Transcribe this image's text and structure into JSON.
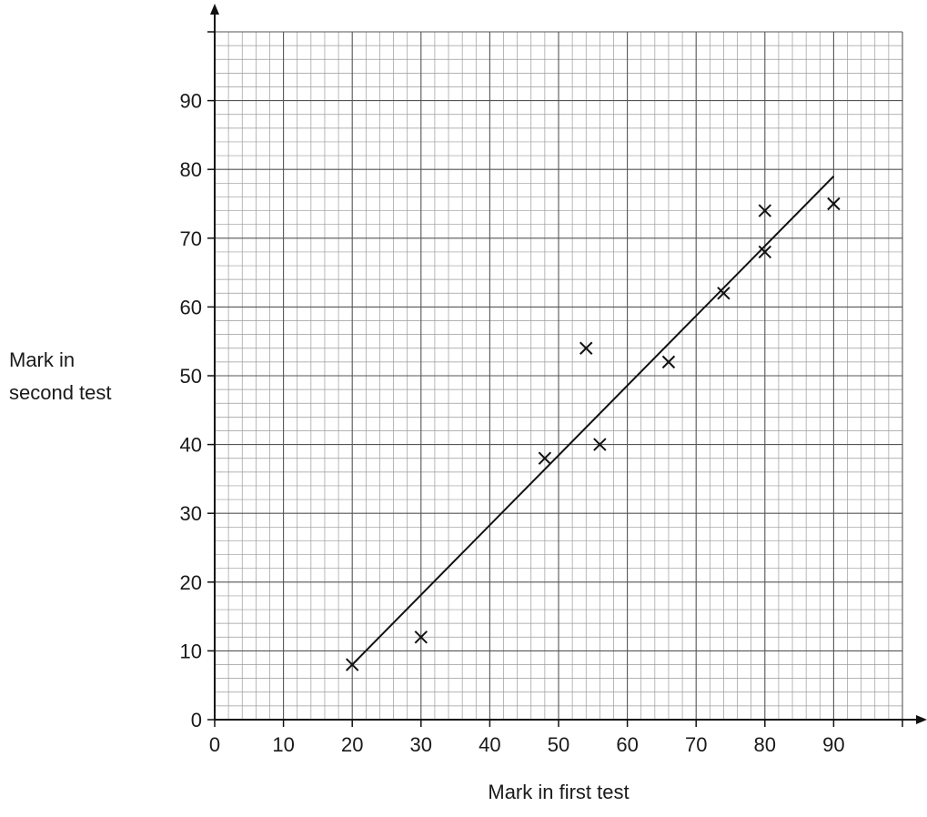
{
  "chart_data": {
    "type": "scatter",
    "title": "",
    "xlabel": "Mark in first test",
    "ylabel_lines": [
      "Mark in",
      "second test"
    ],
    "xlim": [
      0,
      100
    ],
    "ylim": [
      0,
      100
    ],
    "x_ticks": [
      0,
      10,
      20,
      30,
      40,
      50,
      60,
      70,
      80,
      90
    ],
    "y_ticks": [
      0,
      10,
      20,
      30,
      40,
      50,
      60,
      70,
      80,
      90
    ],
    "grid": true,
    "grid_minor_step": 2,
    "grid_major_step": 10,
    "marker": "cross",
    "series": [
      {
        "points": [
          {
            "x": 20,
            "y": 8
          },
          {
            "x": 30,
            "y": 12
          },
          {
            "x": 48,
            "y": 38
          },
          {
            "x": 54,
            "y": 54
          },
          {
            "x": 56,
            "y": 40
          },
          {
            "x": 66,
            "y": 52
          },
          {
            "x": 74,
            "y": 62
          },
          {
            "x": 80,
            "y": 68
          },
          {
            "x": 80,
            "y": 74
          },
          {
            "x": 90,
            "y": 75
          }
        ]
      }
    ],
    "line_of_best_fit": {
      "from": {
        "x": 20,
        "y": 8
      },
      "to": {
        "x": 90,
        "y": 79
      }
    }
  }
}
